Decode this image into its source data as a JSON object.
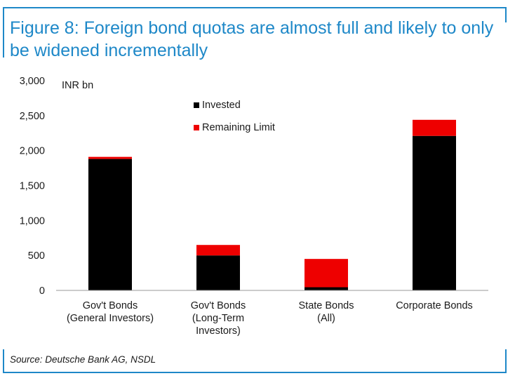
{
  "title": "Figure 8: Foreign bond quotas are almost full and likely to only be widened incrementally",
  "source": "Source: Deutsche Bank AG, NSDL",
  "colors": {
    "accent": "#1e88c8",
    "invested": "#000000",
    "remaining": "#ee0000"
  },
  "chart_data": {
    "type": "bar",
    "stacked": true,
    "title": "",
    "xlabel": "",
    "ylabel": "INR bn",
    "ylim": [
      0,
      3000
    ],
    "y_ticks": [
      "3,000",
      "2,500",
      "2,000",
      "1,500",
      "1,000",
      "500",
      "0"
    ],
    "y_tick_values": [
      3000,
      2500,
      2000,
      1500,
      1000,
      500,
      0
    ],
    "grid": false,
    "legend_position": "top-center",
    "categories": [
      [
        "Gov't Bonds",
        "(General Investors)"
      ],
      [
        "Gov't Bonds",
        "(Long-Term",
        "Investors)"
      ],
      [
        "State Bonds",
        "(All)"
      ],
      [
        "Corporate Bonds"
      ]
    ],
    "series": [
      {
        "name": "Invested",
        "color": "#000000",
        "values": [
          1880,
          500,
          45,
          2210
        ]
      },
      {
        "name": "Remaining Limit",
        "color": "#ee0000",
        "values": [
          30,
          150,
          405,
          230
        ]
      }
    ]
  }
}
